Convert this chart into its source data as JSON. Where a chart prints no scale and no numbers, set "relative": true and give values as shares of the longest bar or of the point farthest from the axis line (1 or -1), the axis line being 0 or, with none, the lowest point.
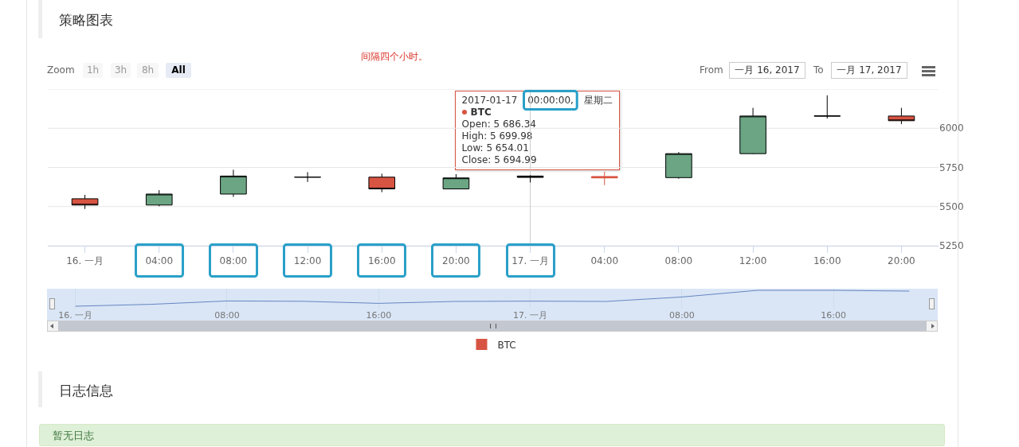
{
  "chart_data": [
    {
      "type": "candlestick",
      "title": "策略图表",
      "x": [
        "2017-01-16T00:00",
        "2017-01-16T04:00",
        "2017-01-16T08:00",
        "2017-01-16T12:00",
        "2017-01-16T16:00",
        "2017-01-16T20:00",
        "2017-01-17T00:00",
        "2017-01-17T04:00",
        "2017-01-17T08:00",
        "2017-01-17T12:00",
        "2017-01-17T16:00",
        "2017-01-17T20:00"
      ],
      "series": [
        {
          "name": "BTC",
          "color": "#d75442",
          "colors": [
            "#d75442",
            "#6ba583",
            "#6ba583",
            "#000000",
            "#d75442",
            "#6ba583",
            "#000000",
            "#d75442",
            "#6ba583",
            "#6ba583",
            "#000000",
            "#d75442"
          ],
          "ohlc": [
            [
              5550,
              5575,
              5485,
              5510
            ],
            [
              5510,
              5605,
              5502,
              5580
            ],
            [
              5580,
              5735,
              5562,
              5695
            ],
            [
              5687,
              5720,
              5657,
              5689
            ],
            [
              5688,
              5710,
              5592,
              5613
            ],
            [
              5613,
              5707,
              5610,
              5683
            ],
            [
              5686.34,
              5699.98,
              5654.01,
              5694.99
            ],
            [
              5692,
              5723,
              5637,
              5683
            ],
            [
              5685,
              5848,
              5678,
              5838
            ],
            [
              5838,
              6130,
              5835,
              6078
            ],
            [
              6077,
              6210,
              6062,
              6079
            ],
            [
              6078,
              6130,
              6026,
              6048
            ]
          ]
        }
      ],
      "xlim": [
        "2017-01-15T22:00",
        "2017-01-17T22:00"
      ],
      "xticks": [
        {
          "value": "2017-01-16T00:00",
          "label": "16. 一月"
        },
        {
          "value": "2017-01-16T04:00",
          "label": "04:00"
        },
        {
          "value": "2017-01-16T08:00",
          "label": "08:00"
        },
        {
          "value": "2017-01-16T12:00",
          "label": "12:00"
        },
        {
          "value": "2017-01-16T16:00",
          "label": "16:00"
        },
        {
          "value": "2017-01-16T20:00",
          "label": "20:00"
        },
        {
          "value": "2017-01-17T00:00",
          "label": "17. 一月"
        },
        {
          "value": "2017-01-17T04:00",
          "label": "04:00"
        },
        {
          "value": "2017-01-17T08:00",
          "label": "08:00"
        },
        {
          "value": "2017-01-17T12:00",
          "label": "12:00"
        },
        {
          "value": "2017-01-17T16:00",
          "label": "16:00"
        },
        {
          "value": "2017-01-17T20:00",
          "label": "20:00"
        }
      ],
      "ylim": [
        5250,
        6250
      ],
      "yticks": [
        5250,
        5500,
        5750,
        6000,
        {
          "value": 6250,
          "label": null
        }
      ],
      "grid": "y",
      "legend": "bottom",
      "ref_lines": [
        {
          "axis": "x",
          "value": "2017-01-17T00:00",
          "color": "#cccccc"
        }
      ],
      "annotations": [
        "间隔四个小时。",
        "Zoom",
        "1h",
        "3h",
        "8h",
        "All",
        "From",
        "一月 16, 2017",
        "To",
        "一月 17, 2017",
        {
          "text": "2017-01-17 00:00:00, 星期二\nBTC\nOpen: 5 686.34\nHigh: 5 699.98\nLow: 5 654.01\nClose: 5 694.99",
          "x": "2017-01-17T00:00",
          "y": 5699.98
        },
        "日志信息",
        "暂无日志"
      ]
    },
    {
      "type": "line",
      "x": [
        "2017-01-16T00:00",
        "2017-01-16T04:00",
        "2017-01-16T08:00",
        "2017-01-16T12:00",
        "2017-01-16T16:00",
        "2017-01-16T20:00",
        "2017-01-17T00:00",
        "2017-01-17T04:00",
        "2017-01-17T08:00",
        "2017-01-17T12:00",
        "2017-01-17T16:00",
        "2017-01-17T20:00"
      ],
      "series": [
        {
          "color": "#6685c2",
          "values": [
            0,
            0.12,
            0.33,
            0.31,
            0.18,
            0.3,
            0.32,
            0.3,
            0.58,
            1,
            1,
            0.95
          ]
        }
      ],
      "relative": true,
      "marker": "none",
      "grid": "x",
      "tick_labels": "x",
      "xlim": [
        "2017-01-15T22:30",
        "2017-01-17T21:30"
      ],
      "xticks": [
        {
          "value": "2017-01-16T00:00",
          "label": "16. 一月"
        },
        {
          "value": "2017-01-16T08:00",
          "label": "08:00"
        },
        {
          "value": "2017-01-16T16:00",
          "label": "16:00"
        },
        {
          "value": "2017-01-17T00:00",
          "label": "17. 一月"
        },
        {
          "value": "2017-01-17T08:00",
          "label": "08:00"
        },
        {
          "value": "2017-01-17T16:00",
          "label": "16:00"
        }
      ]
    }
  ]
}
